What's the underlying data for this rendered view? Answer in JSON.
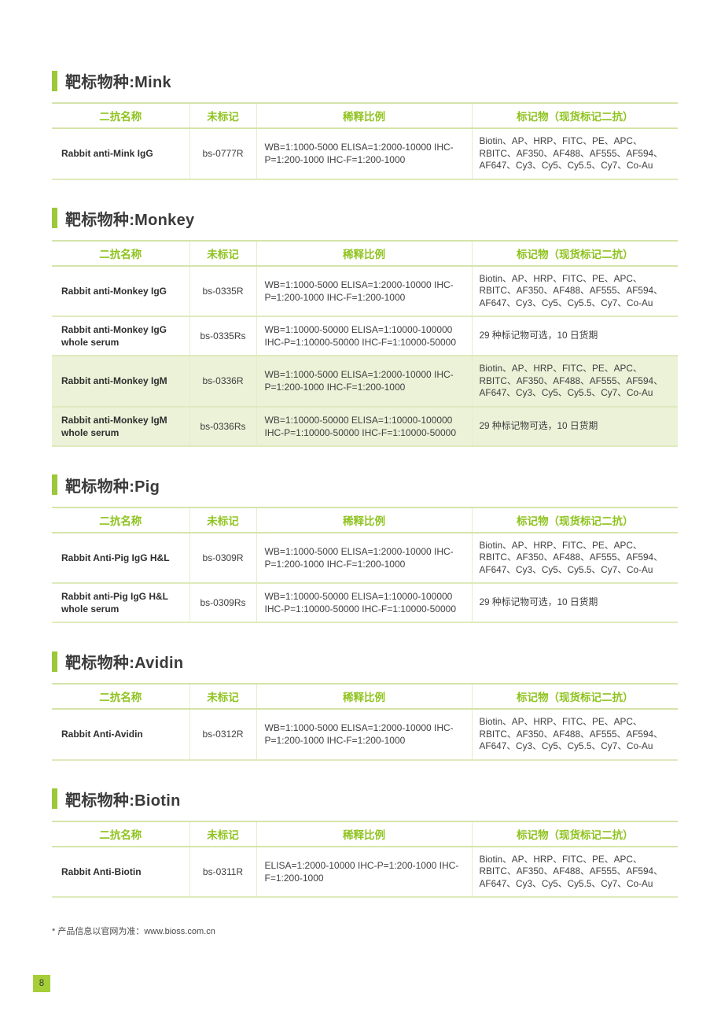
{
  "colors": {
    "accent_green": "#8fc31f",
    "title_bar_green": "#9cc83a",
    "badge_green": "#a6ce39",
    "row_highlight": "#ebf2d8",
    "border_green": "#d5e4ab",
    "text_dark": "#3a3a3a"
  },
  "headers": {
    "name": "二抗名称",
    "unlabeled": "未标记",
    "dilution": "稀释比例",
    "labels": "标记物（现货标记二抗）"
  },
  "sections": [
    {
      "title": "靶标物种:Mink",
      "rows": [
        {
          "name": "Rabbit anti-Mink IgG",
          "catalog": "bs-0777R",
          "dilution": "WB=1:1000-5000 ELISA=1:2000-10000 IHC-P=1:200-1000 IHC-F=1:200-1000",
          "labels": "Biotin、AP、HRP、FITC、PE、APC、RBITC、AF350、AF488、AF555、AF594、AF647、Cy3、Cy5、Cy5.5、Cy7、Co-Au",
          "highlight": false
        }
      ]
    },
    {
      "title": "靶标物种:Monkey",
      "rows": [
        {
          "name": "Rabbit anti-Monkey IgG",
          "catalog": "bs-0335R",
          "dilution": "WB=1:1000-5000 ELISA=1:2000-10000 IHC-P=1:200-1000 IHC-F=1:200-1000",
          "labels": "Biotin、AP、HRP、FITC、PE、APC、RBITC、AF350、AF488、AF555、AF594、AF647、Cy3、Cy5、Cy5.5、Cy7、Co-Au",
          "highlight": false
        },
        {
          "name": "Rabbit anti-Monkey IgG whole serum",
          "catalog": "bs-0335Rs",
          "dilution": "WB=1:10000-50000 ELISA=1:10000-100000 IHC-P=1:10000-50000 IHC-F=1:10000-50000",
          "labels": "29 种标记物可选，10 日货期",
          "highlight": false
        },
        {
          "name": "Rabbit anti-Monkey IgM",
          "catalog": "bs-0336R",
          "dilution": "WB=1:1000-5000 ELISA=1:2000-10000 IHC-P=1:200-1000 IHC-F=1:200-1000",
          "labels": "Biotin、AP、HRP、FITC、PE、APC、RBITC、AF350、AF488、AF555、AF594、AF647、Cy3、Cy5、Cy5.5、Cy7、Co-Au",
          "highlight": true
        },
        {
          "name": "Rabbit anti-Monkey IgM whole serum",
          "catalog": "bs-0336Rs",
          "dilution": "WB=1:10000-50000 ELISA=1:10000-100000 IHC-P=1:10000-50000 IHC-F=1:10000-50000",
          "labels": "29 种标记物可选，10 日货期",
          "highlight": true
        }
      ]
    },
    {
      "title": "靶标物种:Pig",
      "rows": [
        {
          "name": "Rabbit Anti-Pig IgG H&L",
          "catalog": "bs-0309R",
          "dilution": "WB=1:1000-5000 ELISA=1:2000-10000 IHC-P=1:200-1000 IHC-F=1:200-1000",
          "labels": "Biotin、AP、HRP、FITC、PE、APC、RBITC、AF350、AF488、AF555、AF594、AF647、Cy3、Cy5、Cy5.5、Cy7、Co-Au",
          "highlight": false
        },
        {
          "name": "Rabbit anti-Pig IgG H&L whole serum",
          "catalog": "bs-0309Rs",
          "dilution": "WB=1:10000-50000 ELISA=1:10000-100000 IHC-P=1:10000-50000 IHC-F=1:10000-50000",
          "labels": "29 种标记物可选，10 日货期",
          "highlight": false
        }
      ]
    },
    {
      "title": "靶标物种:Avidin",
      "rows": [
        {
          "name": "Rabbit Anti-Avidin",
          "catalog": "bs-0312R",
          "dilution": "WB=1:1000-5000 ELISA=1:2000-10000 IHC-P=1:200-1000 IHC-F=1:200-1000",
          "labels": "Biotin、AP、HRP、FITC、PE、APC、RBITC、AF350、AF488、AF555、AF594、AF647、Cy3、Cy5、Cy5.5、Cy7、Co-Au",
          "highlight": false
        }
      ]
    },
    {
      "title": "靶标物种:Biotin",
      "rows": [
        {
          "name": "Rabbit Anti-Biotin",
          "catalog": "bs-0311R",
          "dilution": "ELISA=1:2000-10000 IHC-P=1:200-1000 IHC-F=1:200-1000",
          "labels": "Biotin、AP、HRP、FITC、PE、APC、RBITC、AF350、AF488、AF555、AF594、AF647、Cy3、Cy5、Cy5.5、Cy7、Co-Au",
          "highlight": false
        }
      ]
    }
  ],
  "footnote": "* 产品信息以官网为准：www.bioss.com.cn",
  "page_number": "8"
}
